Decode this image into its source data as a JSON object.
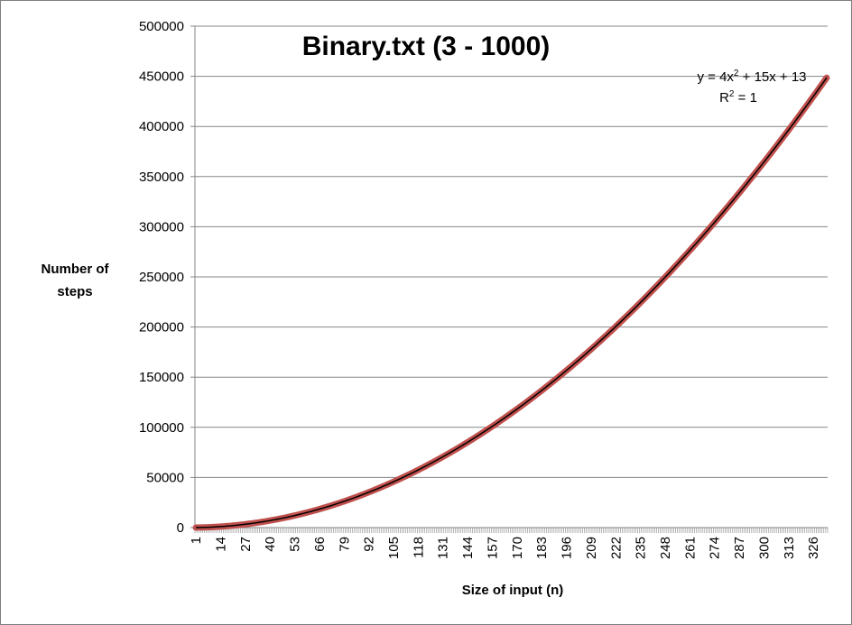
{
  "chart_data": {
    "type": "line",
    "title": "Binary.txt (3 - 1000)",
    "xlabel": "Size of input (n)",
    "ylabel_line1": "Number of",
    "ylabel_line2": "steps",
    "x_range": [
      1,
      333
    ],
    "ylim": [
      0,
      500000
    ],
    "y_ticks": [
      "0",
      "50000",
      "100000",
      "150000",
      "200000",
      "250000",
      "300000",
      "350000",
      "400000",
      "450000",
      "500000"
    ],
    "x_ticks": [
      "1",
      "14",
      "27",
      "40",
      "53",
      "66",
      "79",
      "92",
      "105",
      "118",
      "131",
      "144",
      "157",
      "170",
      "183",
      "196",
      "209",
      "222",
      "235",
      "248",
      "261",
      "274",
      "287",
      "300",
      "313",
      "326"
    ],
    "series": [
      {
        "formula": {
          "a": 4,
          "b": 15,
          "c": 13
        },
        "x_start": 1,
        "x_end": 333,
        "color": "#c0504d",
        "trend_color": "#000000"
      }
    ],
    "trendline_label_line1_pre": "y = 4x",
    "trendline_label_line1_sup": "2",
    "trendline_label_line1_post": " + 15x + 13",
    "trendline_label_line2_pre": "R",
    "trendline_label_line2_sup": "2",
    "trendline_label_line2_post": " = 1",
    "grid": true,
    "legend": "none",
    "colors": {
      "series": "#c0504d",
      "trendline": "#000000",
      "grid": "#868686",
      "axis": "#868686"
    }
  }
}
